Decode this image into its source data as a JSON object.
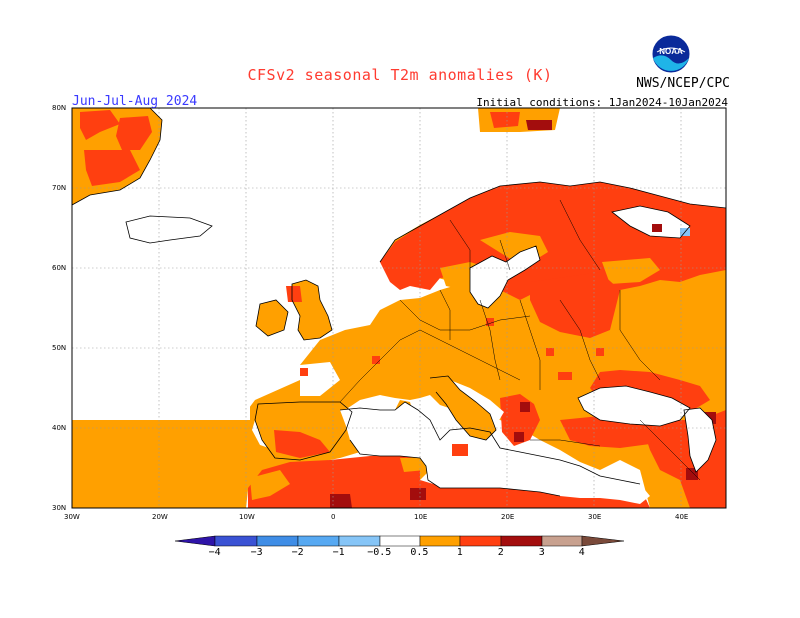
{
  "header": {
    "title": "CFSv2 seasonal T2m anomalies (K)",
    "period": "Jun-Jul-Aug 2024",
    "init": "Initial conditions: 1Jan2024-10Jan2024",
    "agency": "NWS/NCEP/CPC",
    "logo_text": "NOAA"
  },
  "axes": {
    "lat_labels": [
      "80N",
      "70N",
      "60N",
      "50N",
      "40N",
      "30N"
    ],
    "lon_labels": [
      "30W",
      "20W",
      "10W",
      "0",
      "10E",
      "20E",
      "30E",
      "40E"
    ]
  },
  "colorbar": {
    "labels": [
      "−4",
      "−3",
      "−2",
      "−1",
      "−0.5",
      "0.5",
      "1",
      "2",
      "3",
      "4"
    ],
    "colors": [
      "#2e14a8",
      "#3a52d4",
      "#3f8de6",
      "#57a9f2",
      "#86c5f7",
      "#ffffff",
      "#ffa000",
      "#ff3f10",
      "#a30d0d",
      "#c8a18f",
      "#7a4a3a"
    ]
  },
  "palette": {
    "water": "#ffffff",
    "orange": "#ffa000",
    "red": "#ff3f10",
    "darkred": "#a30d0d",
    "border": "#000000"
  }
}
